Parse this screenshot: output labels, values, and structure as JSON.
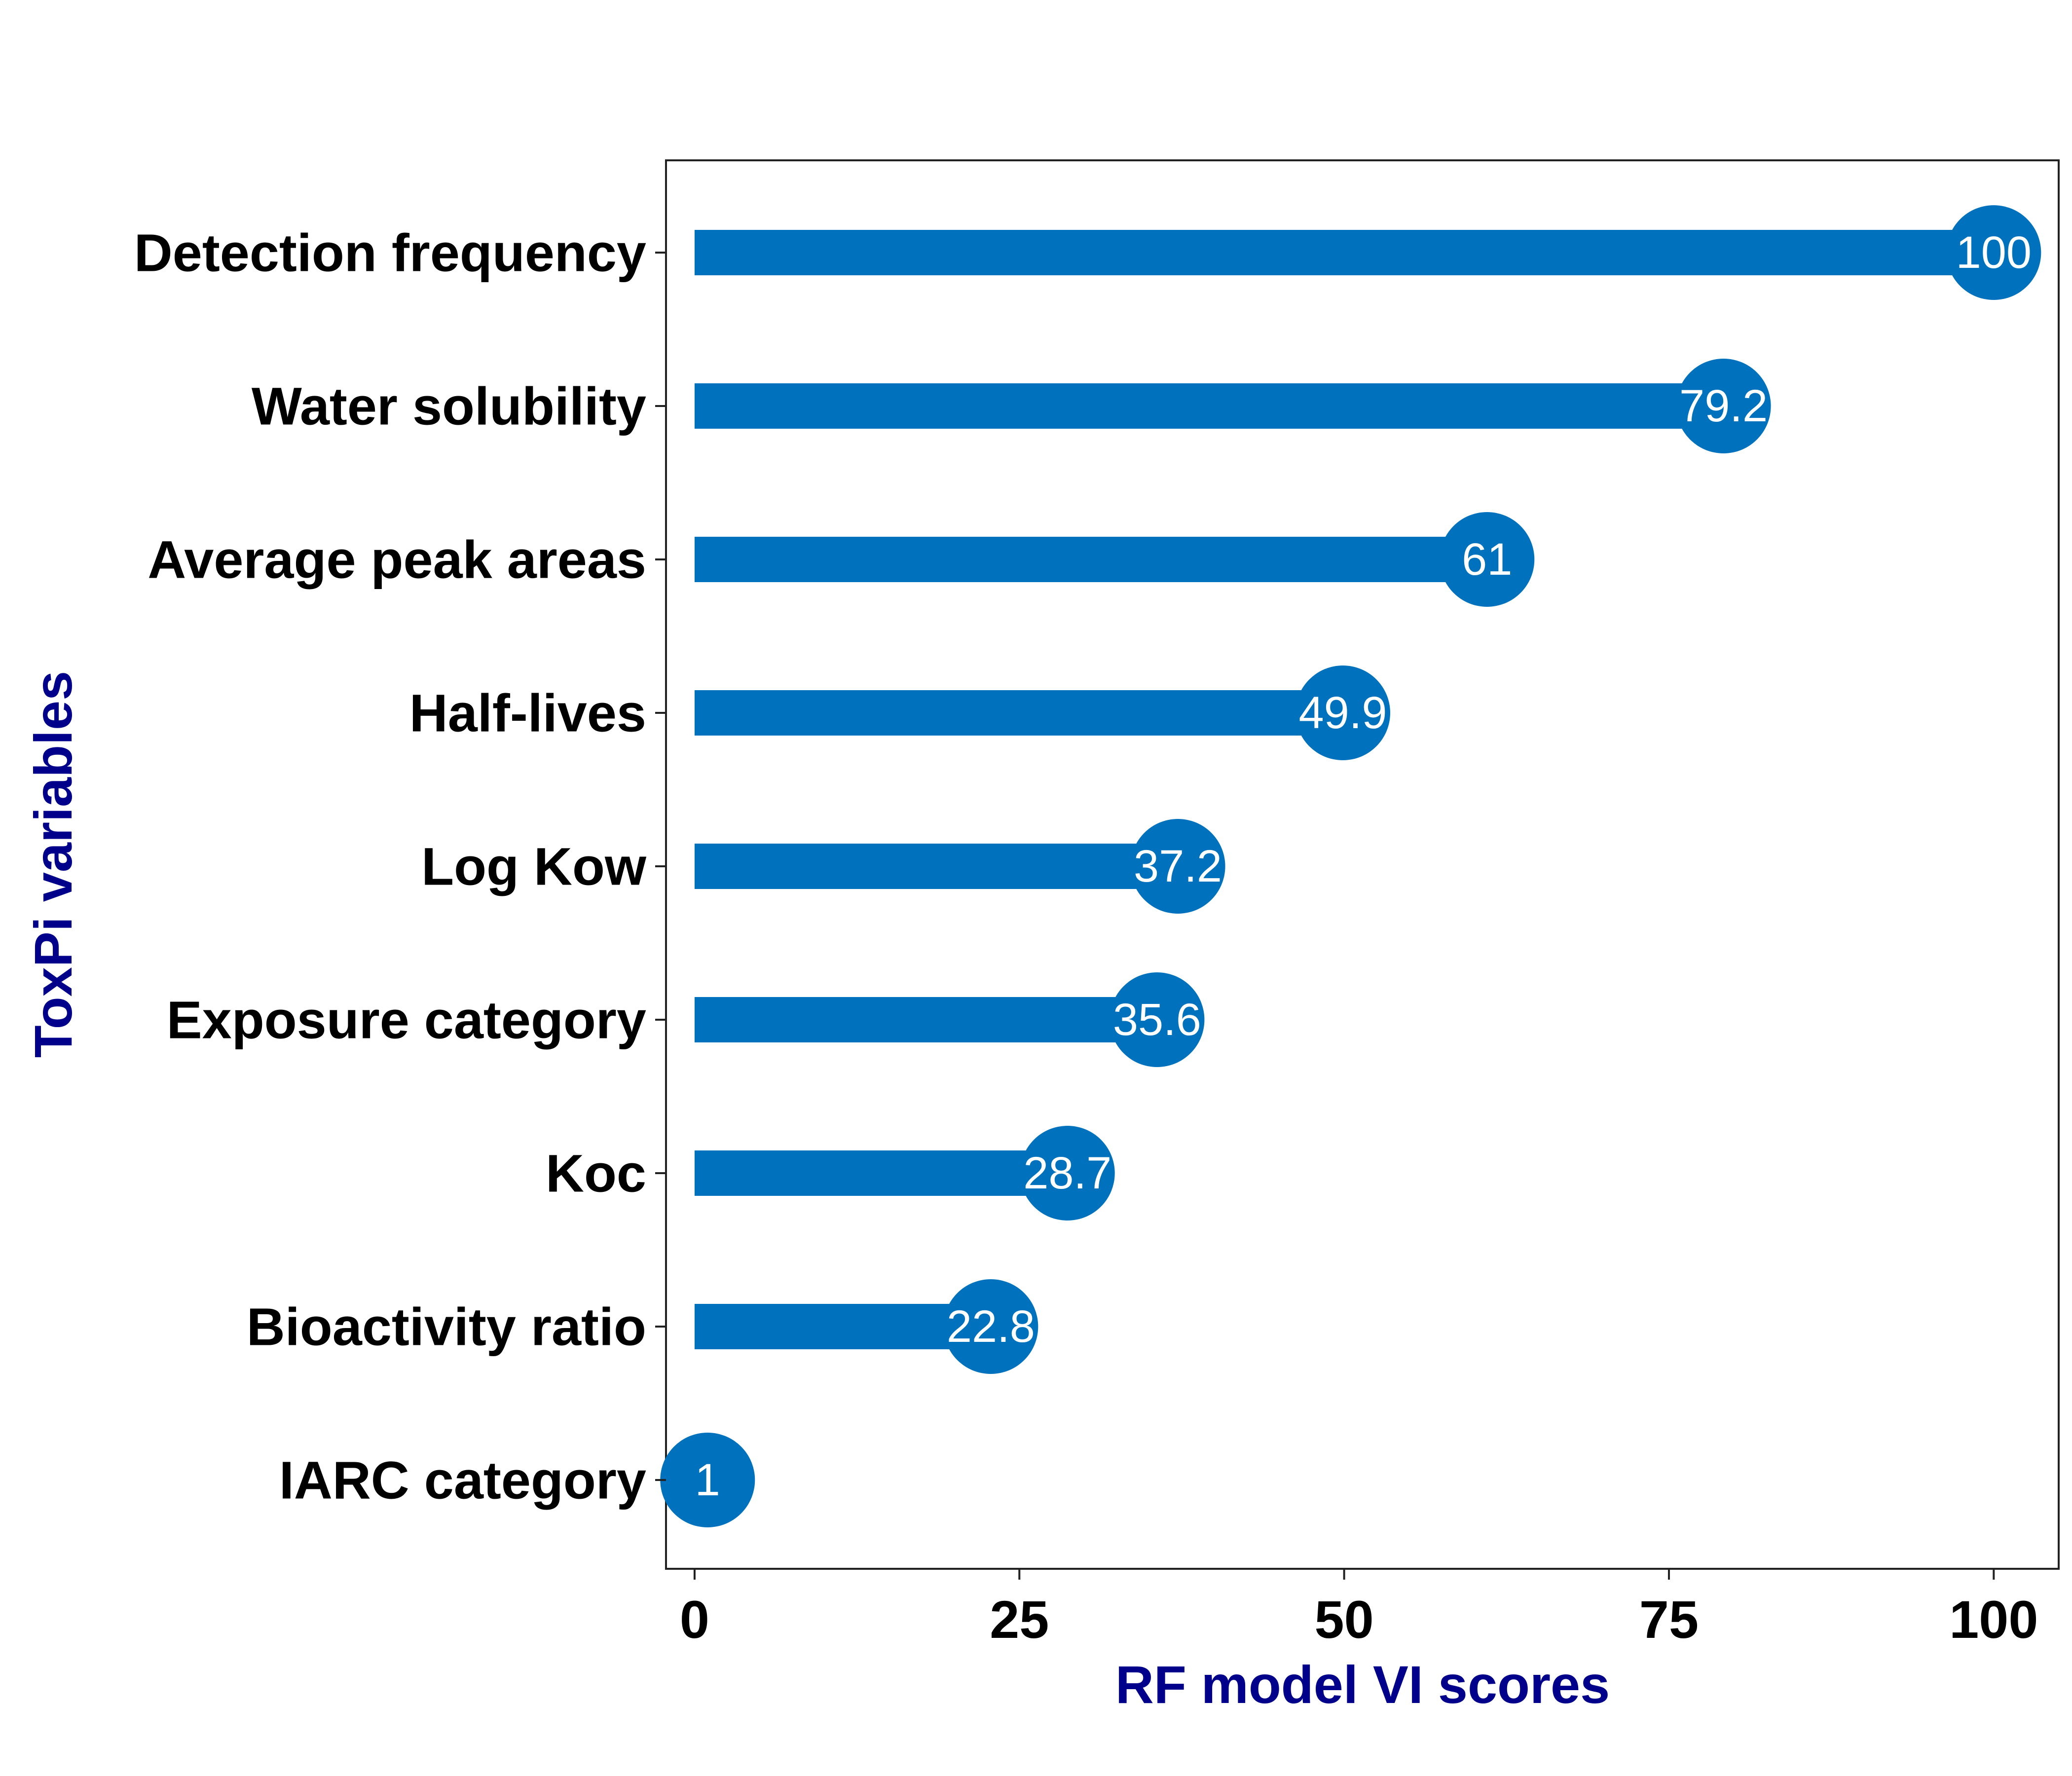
{
  "chart_data": {
    "type": "bar",
    "orientation": "horizontal",
    "style": "lollipop",
    "title": "",
    "xlabel": "RF model VI scores",
    "ylabel": "ToxPi variables",
    "xlim": [
      -2.2,
      105
    ],
    "xticks": [
      0,
      25,
      50,
      75,
      100
    ],
    "grid": false,
    "categories": [
      "Detection frequency",
      "Water solubility",
      "Average peak areas",
      "Half-lives",
      "Log Kow",
      "Exposure category",
      "Koc",
      "Bioactivity ratio",
      "IARC category"
    ],
    "values": [
      100,
      79.2,
      61,
      49.9,
      37.2,
      35.6,
      28.7,
      22.8,
      1
    ],
    "value_labels": [
      "100",
      "79.2",
      "61",
      "49.9",
      "37.2",
      "35.6",
      "28.7",
      "22.8",
      "1"
    ],
    "bar_color": "#0072BD",
    "axis_title_color": "#00008B"
  }
}
